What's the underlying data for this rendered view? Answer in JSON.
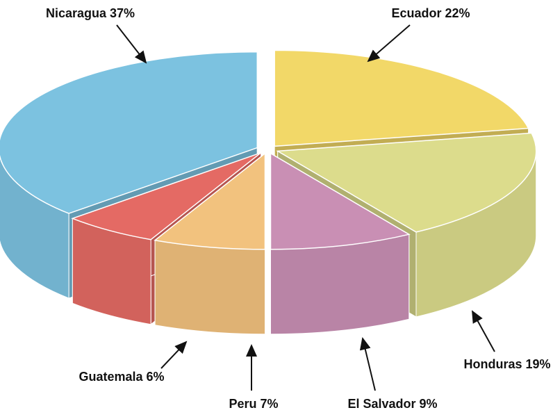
{
  "chart_data": {
    "type": "pie3d",
    "categories": [
      "Ecuador",
      "Honduras",
      "El Salvador",
      "Peru",
      "Guatemala",
      "Nicaragua"
    ],
    "values": [
      22,
      19,
      9,
      7,
      6,
      37
    ],
    "value_labels": [
      "22%",
      "19%",
      "9%",
      "7%",
      "6%",
      "37%"
    ],
    "colors": [
      "#f2d868",
      "#dcdc8c",
      "#c98fb4",
      "#f2c27e",
      "#e46a64",
      "#7cc2e0"
    ]
  }
}
